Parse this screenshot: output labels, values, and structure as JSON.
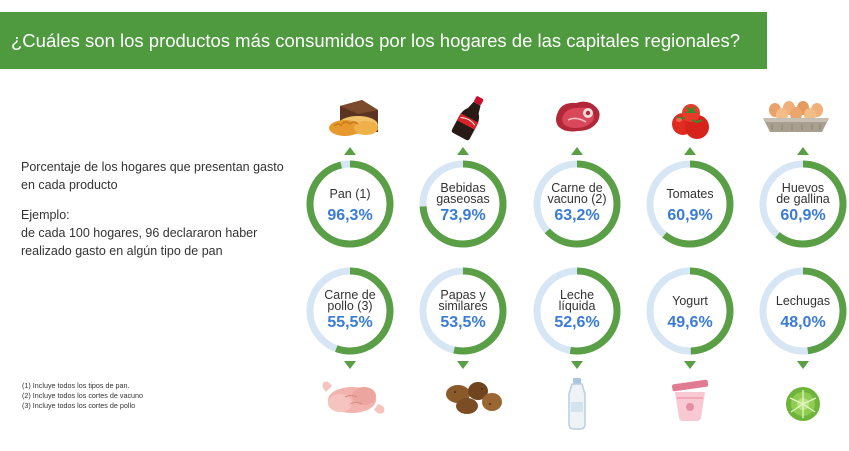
{
  "title": "¿Cuáles son los productos más consumidos por los hogares de las capitales regionales?",
  "description": {
    "line1": "Porcentaje de los hogares que presentan gasto en cada producto",
    "example_title": "Ejemplo:",
    "example_text": "de cada 100 hogares, 96 declararon haber realizado gasto en algún tipo de pan"
  },
  "notes": [
    "(1) Incluye todos los tipos de pan.",
    "(2) Incluye todos los cortes de vacuno",
    "(3) Incluye todos los cortes de pollo"
  ],
  "colors": {
    "ring": "#5a9e45",
    "track": "#d6e6f4",
    "value": "#3a7bd5",
    "banner": "#4f9a3f",
    "label": "#333333"
  },
  "chart_data": {
    "type": "donut",
    "ylim": [
      0,
      100
    ],
    "items": [
      {
        "label": [
          "Pan (1)"
        ],
        "value_label": "96,3%",
        "value": 96.3,
        "icon": "bread-icon"
      },
      {
        "label": [
          "Bebidas",
          "gaseosas"
        ],
        "value_label": "73,9%",
        "value": 73.9,
        "icon": "soda-bottle-icon"
      },
      {
        "label": [
          "Carne de",
          "vacuno (2)"
        ],
        "value_label": "63,2%",
        "value": 63.2,
        "icon": "steak-icon"
      },
      {
        "label": [
          "Tomates"
        ],
        "value_label": "60,9%",
        "value": 60.9,
        "icon": "tomatoes-icon"
      },
      {
        "label": [
          "Huevos",
          "de gallina"
        ],
        "value_label": "60,9%",
        "value": 60.9,
        "icon": "eggs-icon"
      },
      {
        "label": [
          "Carne de",
          "pollo (3)"
        ],
        "value_label": "55,5%",
        "value": 55.5,
        "icon": "raw-chicken-icon"
      },
      {
        "label": [
          "Papas y",
          "similares"
        ],
        "value_label": "53,5%",
        "value": 53.5,
        "icon": "potatoes-icon"
      },
      {
        "label": [
          "Leche",
          "líquida"
        ],
        "value_label": "52,6%",
        "value": 52.6,
        "icon": "milk-bottle-icon"
      },
      {
        "label": [
          "Yogurt"
        ],
        "value_label": "49,6%",
        "value": 49.6,
        "icon": "yogurt-cup-icon"
      },
      {
        "label": [
          "Lechugas"
        ],
        "value_label": "48,0%",
        "value": 48.0,
        "icon": "lettuce-icon"
      }
    ]
  }
}
